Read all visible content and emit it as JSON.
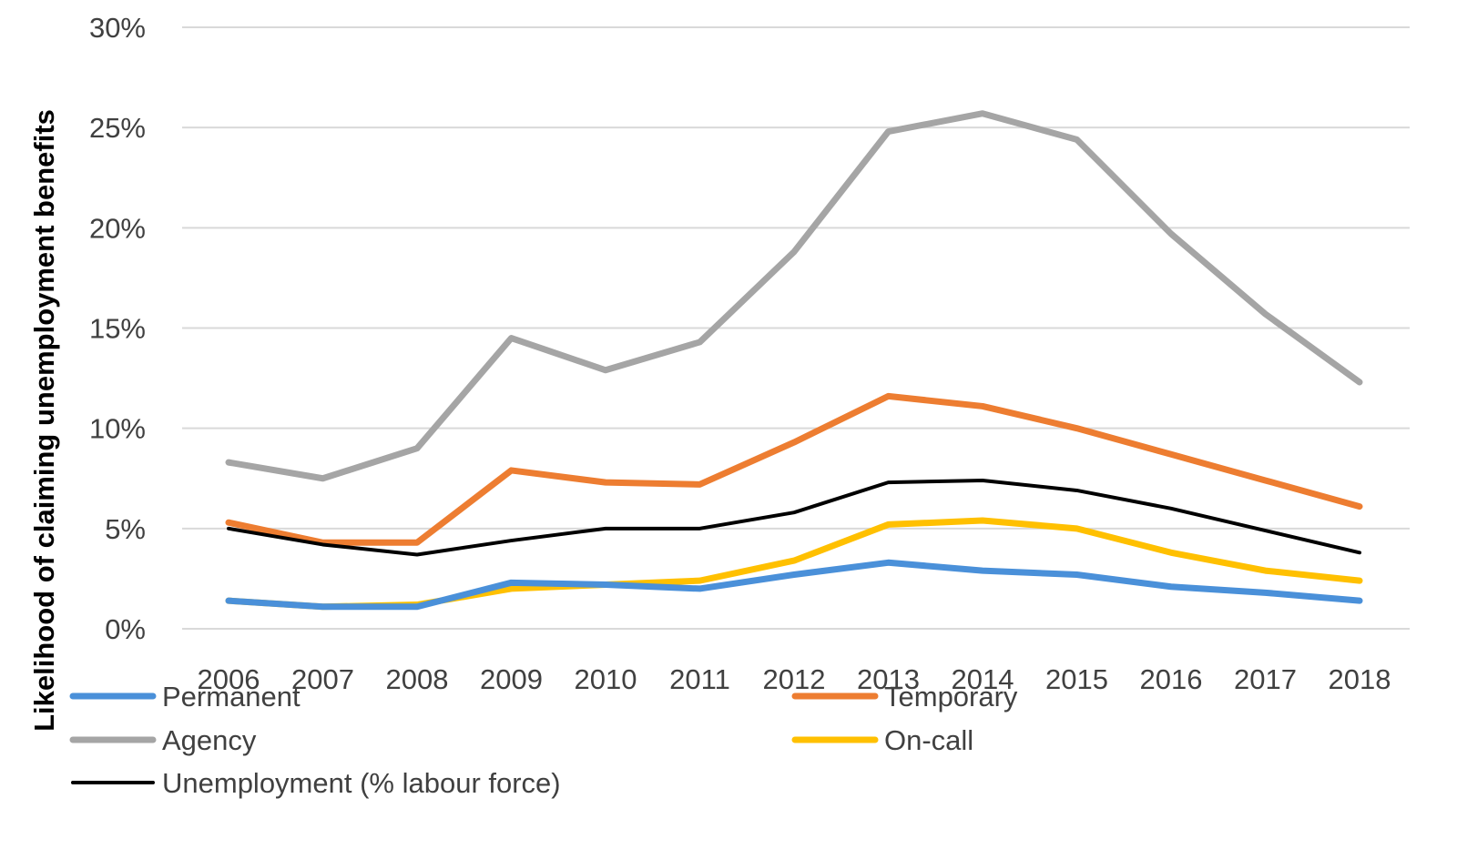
{
  "chart_data": {
    "type": "line",
    "ylabel": "Likelihood of claiming unemployment benefits",
    "xlabel": "",
    "x": [
      "2006",
      "2007",
      "2008",
      "2009",
      "2010",
      "2011",
      "2012",
      "2013",
      "2014",
      "2015",
      "2016",
      "2017",
      "2018"
    ],
    "ylim": [
      0,
      30
    ],
    "yticks": [
      0,
      5,
      10,
      15,
      20,
      25,
      30
    ],
    "ytick_labels": [
      "0%",
      "5%",
      "10%",
      "15%",
      "20%",
      "25%",
      "30%"
    ],
    "grid": true,
    "legend_position": "bottom",
    "series": [
      {
        "name": "Permanent",
        "color": "#4a90d9",
        "values": [
          1.4,
          1.1,
          1.1,
          2.3,
          2.2,
          2.0,
          2.7,
          3.3,
          2.9,
          2.7,
          2.1,
          1.8,
          1.4
        ]
      },
      {
        "name": "Temporary",
        "color": "#ed7d31",
        "values": [
          5.3,
          4.3,
          4.3,
          7.9,
          7.3,
          7.2,
          9.3,
          11.6,
          11.1,
          10.0,
          8.7,
          7.4,
          6.1
        ]
      },
      {
        "name": "Agency",
        "color": "#a5a5a5",
        "values": [
          8.3,
          7.5,
          9.0,
          14.5,
          12.9,
          14.3,
          18.8,
          24.8,
          25.7,
          24.4,
          19.7,
          15.7,
          12.3
        ]
      },
      {
        "name": "On-call",
        "color": "#ffc000",
        "values": [
          1.4,
          1.1,
          1.2,
          2.0,
          2.2,
          2.4,
          3.4,
          5.2,
          5.4,
          5.0,
          3.8,
          2.9,
          2.4
        ]
      },
      {
        "name": "Unemployment (% labour force)",
        "color": "#000000",
        "values": [
          5.0,
          4.2,
          3.7,
          4.4,
          5.0,
          5.0,
          5.8,
          7.3,
          7.4,
          6.9,
          6.0,
          4.9,
          3.8
        ]
      }
    ]
  }
}
